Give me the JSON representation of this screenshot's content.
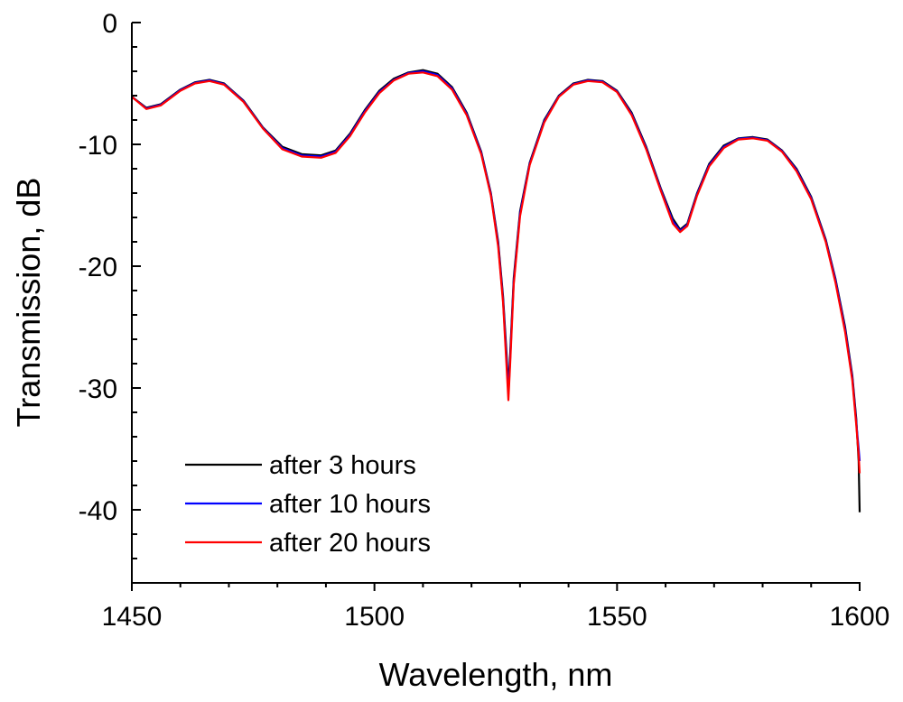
{
  "chart_data": {
    "type": "line",
    "title": "",
    "xlabel": "Wavelength, nm",
    "ylabel": "Transmission, dB",
    "xlim": [
      1450,
      1600
    ],
    "ylim": [
      -46,
      0
    ],
    "xticks": [
      1450,
      1500,
      1550,
      1600
    ],
    "xtick_labels": [
      "1450",
      "1500",
      "1550",
      "1600"
    ],
    "yticks": [
      0,
      -10,
      -20,
      -30,
      -40
    ],
    "ytick_labels": [
      "0",
      "-10",
      "-20",
      "-30",
      "-40"
    ],
    "grid": false,
    "legend_position": "bottom-left",
    "series": [
      {
        "name": "after 3 hours",
        "color": "#000000",
        "points": [
          [
            1450,
            -6.1
          ],
          [
            1453,
            -7.0
          ],
          [
            1456,
            -6.7
          ],
          [
            1460,
            -5.5
          ],
          [
            1463,
            -4.9
          ],
          [
            1466,
            -4.7
          ],
          [
            1469,
            -5.0
          ],
          [
            1473,
            -6.4
          ],
          [
            1477,
            -8.6
          ],
          [
            1481,
            -10.2
          ],
          [
            1485,
            -10.8
          ],
          [
            1489,
            -10.9
          ],
          [
            1492,
            -10.5
          ],
          [
            1495,
            -9.1
          ],
          [
            1498,
            -7.2
          ],
          [
            1501,
            -5.6
          ],
          [
            1504,
            -4.6
          ],
          [
            1507,
            -4.1
          ],
          [
            1510,
            -3.9
          ],
          [
            1513,
            -4.2
          ],
          [
            1516,
            -5.3
          ],
          [
            1519,
            -7.4
          ],
          [
            1522,
            -10.6
          ],
          [
            1524,
            -14.0
          ],
          [
            1525.5,
            -18.0
          ],
          [
            1526.5,
            -22.5
          ],
          [
            1527.2,
            -27.0
          ],
          [
            1527.6,
            -30.0
          ],
          [
            1528.0,
            -27.0
          ],
          [
            1528.7,
            -21.0
          ],
          [
            1530,
            -15.5
          ],
          [
            1532,
            -11.5
          ],
          [
            1535,
            -8.0
          ],
          [
            1538,
            -6.0
          ],
          [
            1541,
            -5.0
          ],
          [
            1544,
            -4.7
          ],
          [
            1547,
            -4.8
          ],
          [
            1550,
            -5.6
          ],
          [
            1553,
            -7.4
          ],
          [
            1556,
            -10.2
          ],
          [
            1559,
            -13.6
          ],
          [
            1561.5,
            -16.1
          ],
          [
            1563,
            -17.0
          ],
          [
            1564.5,
            -16.5
          ],
          [
            1566.5,
            -14.0
          ],
          [
            1569,
            -11.6
          ],
          [
            1572,
            -10.1
          ],
          [
            1575,
            -9.5
          ],
          [
            1578,
            -9.4
          ],
          [
            1581,
            -9.6
          ],
          [
            1584,
            -10.5
          ],
          [
            1587,
            -12.0
          ],
          [
            1590,
            -14.3
          ],
          [
            1593,
            -17.8
          ],
          [
            1595,
            -21.0
          ],
          [
            1597,
            -25.0
          ],
          [
            1598.5,
            -29.0
          ],
          [
            1599.3,
            -32.5
          ],
          [
            1599.8,
            -36.0
          ],
          [
            1600,
            -40.2
          ]
        ]
      },
      {
        "name": "after 10 hours",
        "color": "#0000ff",
        "points": [
          [
            1450,
            -6.1
          ],
          [
            1453,
            -7.05
          ],
          [
            1456,
            -6.75
          ],
          [
            1460,
            -5.55
          ],
          [
            1463,
            -4.95
          ],
          [
            1466,
            -4.75
          ],
          [
            1469,
            -5.05
          ],
          [
            1473,
            -6.45
          ],
          [
            1477,
            -8.65
          ],
          [
            1481,
            -10.3
          ],
          [
            1485,
            -10.9
          ],
          [
            1489,
            -11.0
          ],
          [
            1492,
            -10.6
          ],
          [
            1495,
            -9.2
          ],
          [
            1498,
            -7.3
          ],
          [
            1501,
            -5.7
          ],
          [
            1504,
            -4.7
          ],
          [
            1507,
            -4.15
          ],
          [
            1510,
            -4.0
          ],
          [
            1513,
            -4.3
          ],
          [
            1516,
            -5.4
          ],
          [
            1519,
            -7.5
          ],
          [
            1522,
            -10.7
          ],
          [
            1524,
            -14.1
          ],
          [
            1525.5,
            -18.2
          ],
          [
            1526.5,
            -22.8
          ],
          [
            1527.2,
            -27.5
          ],
          [
            1527.6,
            -30.5
          ],
          [
            1528.0,
            -27.4
          ],
          [
            1528.7,
            -21.3
          ],
          [
            1530,
            -15.7
          ],
          [
            1532,
            -11.6
          ],
          [
            1535,
            -8.1
          ],
          [
            1538,
            -6.05
          ],
          [
            1541,
            -5.05
          ],
          [
            1544,
            -4.75
          ],
          [
            1547,
            -4.85
          ],
          [
            1550,
            -5.65
          ],
          [
            1553,
            -7.5
          ],
          [
            1556,
            -10.3
          ],
          [
            1559,
            -13.7
          ],
          [
            1561.5,
            -16.3
          ],
          [
            1563,
            -17.1
          ],
          [
            1564.5,
            -16.6
          ],
          [
            1566.5,
            -14.1
          ],
          [
            1569,
            -11.7
          ],
          [
            1572,
            -10.2
          ],
          [
            1575,
            -9.55
          ],
          [
            1578,
            -9.45
          ],
          [
            1581,
            -9.65
          ],
          [
            1584,
            -10.55
          ],
          [
            1587,
            -12.1
          ],
          [
            1590,
            -14.4
          ],
          [
            1593,
            -17.9
          ],
          [
            1595,
            -21.1
          ],
          [
            1597,
            -25.2
          ],
          [
            1598.5,
            -29.2
          ],
          [
            1599.3,
            -32.8
          ],
          [
            1599.8,
            -35.0
          ],
          [
            1600,
            -36.0
          ]
        ]
      },
      {
        "name": "after 20 hours",
        "color": "#ff0000",
        "points": [
          [
            1450,
            -6.1
          ],
          [
            1453,
            -7.1
          ],
          [
            1456,
            -6.8
          ],
          [
            1460,
            -5.6
          ],
          [
            1463,
            -5.0
          ],
          [
            1466,
            -4.8
          ],
          [
            1469,
            -5.1
          ],
          [
            1473,
            -6.5
          ],
          [
            1477,
            -8.7
          ],
          [
            1481,
            -10.4
          ],
          [
            1485,
            -11.0
          ],
          [
            1489,
            -11.1
          ],
          [
            1492,
            -10.7
          ],
          [
            1495,
            -9.3
          ],
          [
            1498,
            -7.4
          ],
          [
            1501,
            -5.8
          ],
          [
            1504,
            -4.75
          ],
          [
            1507,
            -4.2
          ],
          [
            1510,
            -4.1
          ],
          [
            1513,
            -4.4
          ],
          [
            1516,
            -5.5
          ],
          [
            1519,
            -7.6
          ],
          [
            1522,
            -10.8
          ],
          [
            1524,
            -14.2
          ],
          [
            1525.5,
            -18.4
          ],
          [
            1526.5,
            -23.0
          ],
          [
            1527.2,
            -28.0
          ],
          [
            1527.6,
            -31.0
          ],
          [
            1528.0,
            -27.8
          ],
          [
            1528.7,
            -21.5
          ],
          [
            1530,
            -15.9
          ],
          [
            1532,
            -11.7
          ],
          [
            1535,
            -8.2
          ],
          [
            1538,
            -6.1
          ],
          [
            1541,
            -5.1
          ],
          [
            1544,
            -4.8
          ],
          [
            1547,
            -4.9
          ],
          [
            1550,
            -5.7
          ],
          [
            1553,
            -7.6
          ],
          [
            1556,
            -10.4
          ],
          [
            1559,
            -13.8
          ],
          [
            1561.5,
            -16.5
          ],
          [
            1563,
            -17.2
          ],
          [
            1564.5,
            -16.7
          ],
          [
            1566.5,
            -14.2
          ],
          [
            1569,
            -11.8
          ],
          [
            1572,
            -10.3
          ],
          [
            1575,
            -9.6
          ],
          [
            1578,
            -9.5
          ],
          [
            1581,
            -9.7
          ],
          [
            1584,
            -10.6
          ],
          [
            1587,
            -12.2
          ],
          [
            1590,
            -14.5
          ],
          [
            1593,
            -18.0
          ],
          [
            1595,
            -21.3
          ],
          [
            1597,
            -25.4
          ],
          [
            1598.5,
            -29.4
          ],
          [
            1599.3,
            -33.0
          ],
          [
            1599.8,
            -35.5
          ],
          [
            1600,
            -37.0
          ]
        ]
      }
    ]
  }
}
